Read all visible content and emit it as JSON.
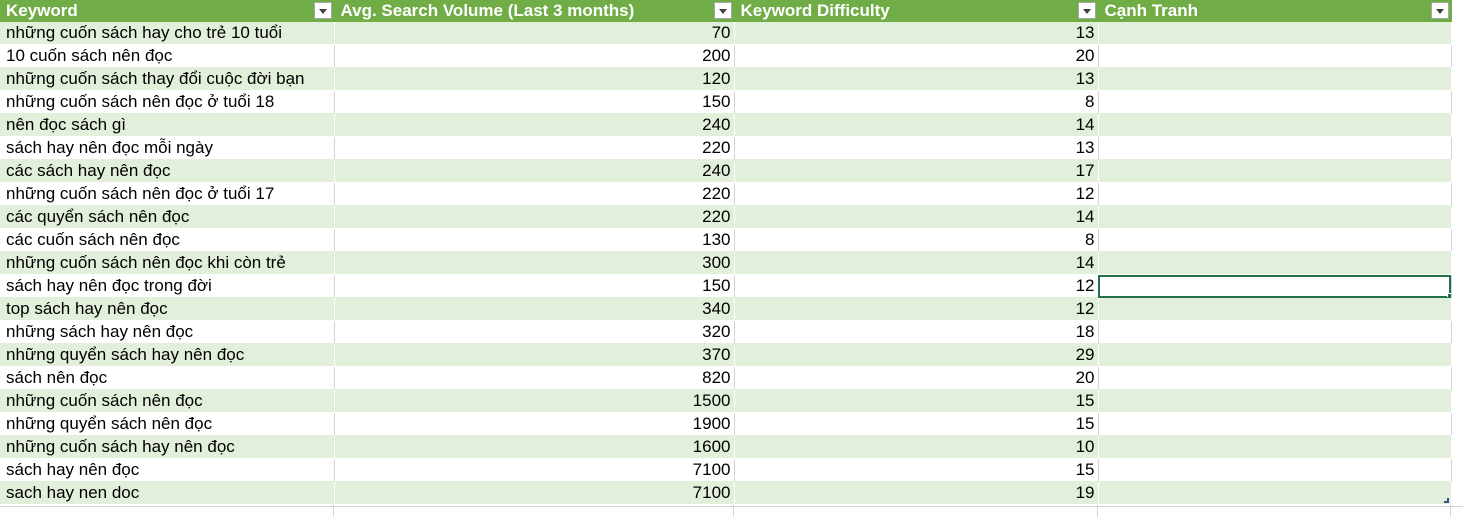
{
  "table": {
    "headers": [
      "Keyword",
      "Avg. Search Volume (Last 3 months)",
      "Keyword Difficulty",
      "Cạnh Tranh"
    ],
    "rows": [
      {
        "keyword": "những cuốn sách hay cho trẻ 10 tuổi",
        "volume": "70",
        "difficulty": "13",
        "competition": ""
      },
      {
        "keyword": "10 cuốn sách nên đọc",
        "volume": "200",
        "difficulty": "20",
        "competition": ""
      },
      {
        "keyword": "những cuốn sách thay đổi cuộc đời bạn",
        "volume": "120",
        "difficulty": "13",
        "competition": ""
      },
      {
        "keyword": "những cuốn sách nên đọc ở tuổi 18",
        "volume": "150",
        "difficulty": "8",
        "competition": ""
      },
      {
        "keyword": "nên đọc sách gì",
        "volume": "240",
        "difficulty": "14",
        "competition": ""
      },
      {
        "keyword": "sách hay nên đọc mỗi ngày",
        "volume": "220",
        "difficulty": "13",
        "competition": ""
      },
      {
        "keyword": "các sách hay nên đọc",
        "volume": "240",
        "difficulty": "17",
        "competition": ""
      },
      {
        "keyword": "những cuốn sách nên đọc ở tuổi 17",
        "volume": "220",
        "difficulty": "12",
        "competition": ""
      },
      {
        "keyword": "các quyển sách nên đọc",
        "volume": "220",
        "difficulty": "14",
        "competition": ""
      },
      {
        "keyword": "các cuốn sách nên đọc",
        "volume": "130",
        "difficulty": "8",
        "competition": ""
      },
      {
        "keyword": "những cuốn sách nên đọc khi còn trẻ",
        "volume": "300",
        "difficulty": "14",
        "competition": ""
      },
      {
        "keyword": "sách hay nên đọc trong đời",
        "volume": "150",
        "difficulty": "12",
        "competition": ""
      },
      {
        "keyword": "top sách hay nên đọc",
        "volume": "340",
        "difficulty": "12",
        "competition": ""
      },
      {
        "keyword": "những sách hay nên đọc",
        "volume": "320",
        "difficulty": "18",
        "competition": ""
      },
      {
        "keyword": "những quyển sách hay nên đọc",
        "volume": "370",
        "difficulty": "29",
        "competition": ""
      },
      {
        "keyword": "sách nên đọc",
        "volume": "820",
        "difficulty": "20",
        "competition": ""
      },
      {
        "keyword": "những cuốn sách nên đọc",
        "volume": "1500",
        "difficulty": "15",
        "competition": ""
      },
      {
        "keyword": "những quyển sách nên đọc",
        "volume": "1900",
        "difficulty": "15",
        "competition": ""
      },
      {
        "keyword": "những cuốn sách hay nên đọc",
        "volume": "1600",
        "difficulty": "10",
        "competition": ""
      },
      {
        "keyword": "sách hay nên đọc",
        "volume": "7100",
        "difficulty": "15",
        "competition": ""
      },
      {
        "keyword": "sach hay nen doc",
        "volume": "7100",
        "difficulty": "19",
        "competition": ""
      }
    ],
    "selected_cell": {
      "row": 11,
      "column": "competition"
    },
    "colors": {
      "header_bg": "#70ad47",
      "header_text": "#ffffff",
      "band_bg": "#e2efda",
      "selection": "#217346"
    }
  }
}
